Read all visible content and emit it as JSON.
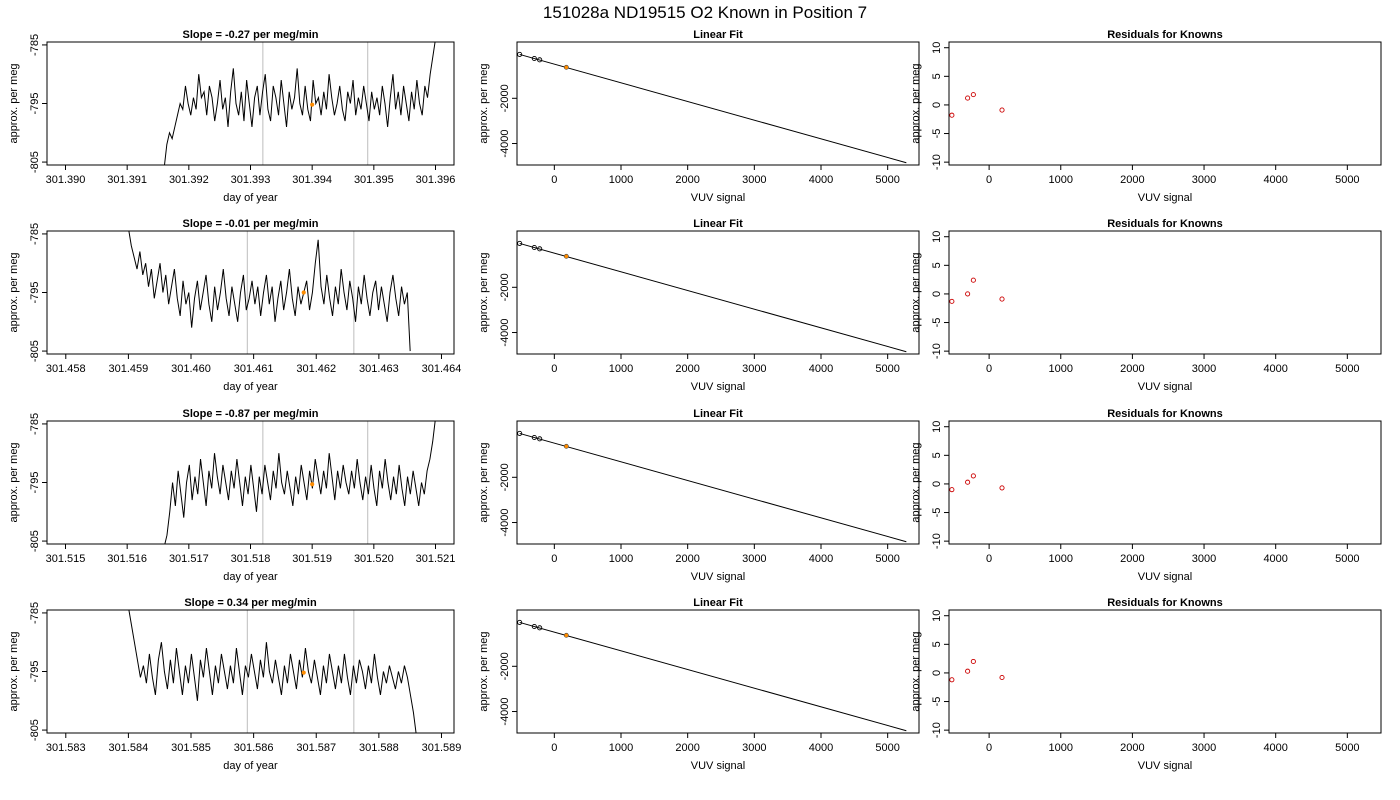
{
  "figure": {
    "title": "151028a     ND19515   O2 Known in Position  7"
  },
  "colors": {
    "frame": "#000000",
    "line": "#000000",
    "grid": "#c8c8c8",
    "marker": "#ff8c00",
    "residual": "#cc0000"
  },
  "chart_data": [
    {
      "type": "line",
      "panel": "trace",
      "row": 1,
      "title": "Slope =  -0.27  per meg/min",
      "xlabel": "day of year",
      "ylabel": "approx. per meg",
      "xlim": [
        301.3897,
        301.3963
      ],
      "ylim": [
        -805.5,
        -784.5
      ],
      "xticks": [
        "301.390",
        "301.391",
        "301.392",
        "301.393",
        "301.394",
        "301.395",
        "301.396"
      ],
      "yticks": [
        "-785",
        "-795",
        "-805"
      ],
      "vlines": [
        301.3932,
        301.3949
      ],
      "marker": {
        "x": 301.394,
        "y": -795.2
      },
      "series": [
        {
          "x_start": 301.3916,
          "x_end": 301.396,
          "values": [
            -806,
            -802,
            -800,
            -801,
            -799,
            -797,
            -795,
            -796,
            -792,
            -795,
            -797,
            -794,
            -796,
            -790,
            -794,
            -793,
            -797,
            -792,
            -794,
            -798,
            -795,
            -791,
            -796,
            -794,
            -799,
            -793,
            -789,
            -795,
            -797,
            -793,
            -798,
            -791,
            -795,
            -799,
            -794,
            -792,
            -797,
            -793,
            -790,
            -796,
            -798,
            -792,
            -794,
            -797,
            -791,
            -795,
            -799,
            -793,
            -796,
            -794,
            -789,
            -795,
            -797,
            -792,
            -796,
            -798,
            -791,
            -795,
            -794,
            -797,
            -793,
            -796,
            -790,
            -794,
            -797,
            -795,
            -792,
            -796,
            -798,
            -793,
            -795,
            -791,
            -797,
            -794,
            -796,
            -792,
            -795,
            -798,
            -793,
            -796,
            -794,
            -797,
            -792,
            -795,
            -799,
            -794,
            -790,
            -796,
            -793,
            -797,
            -792,
            -795,
            -798,
            -793,
            -796,
            -791,
            -795,
            -797,
            -792,
            -794,
            -790,
            -787,
            -784
          ]
        }
      ]
    },
    {
      "type": "line",
      "panel": "fit",
      "row": 1,
      "title": "Linear Fit",
      "xlabel": "VUV signal",
      "ylabel": "approx. per meg",
      "xlim": [
        -560,
        5470
      ],
      "ylim": [
        -4950,
        490
      ],
      "xticks": [
        0,
        1000,
        2000,
        3000,
        4000,
        5000
      ],
      "yticks": [
        -2000,
        -4000
      ],
      "line": {
        "x": [
          -520,
          5280
        ],
        "y": [
          -60,
          -4850
        ]
      },
      "points": {
        "x": [
          -520,
          -300,
          -220
        ],
        "y": [
          -60,
          -240,
          -300
        ]
      },
      "marker": {
        "x": 180,
        "y": -630
      }
    },
    {
      "type": "scatter",
      "panel": "residuals",
      "row": 1,
      "title": "Residuals for Knowns",
      "xlabel": "VUV signal",
      "ylabel": "approx. per meg",
      "xlim": [
        -560,
        5470
      ],
      "ylim": [
        -10.5,
        11
      ],
      "xticks": [
        0,
        1000,
        2000,
        3000,
        4000,
        5000
      ],
      "yticks": [
        10,
        5,
        0,
        -5,
        -10
      ],
      "points": {
        "x": [
          -520,
          -300,
          -220,
          180
        ],
        "y": [
          -1.8,
          1.2,
          1.8,
          -0.9
        ]
      }
    },
    {
      "type": "line",
      "panel": "trace",
      "row": 2,
      "title": "Slope =  -0.01  per meg/min",
      "xlabel": "day of year",
      "ylabel": "approx. per meg",
      "xlim": [
        301.4577,
        301.4642
      ],
      "ylim": [
        -805.5,
        -784.5
      ],
      "xticks": [
        "301.458",
        "301.459",
        "301.460",
        "301.461",
        "301.462",
        "301.463",
        "301.464"
      ],
      "yticks": [
        "-785",
        "-795",
        "-805"
      ],
      "vlines": [
        301.4609,
        301.4626
      ],
      "marker": {
        "x": 301.4618,
        "y": -795.0
      },
      "series": [
        {
          "x_start": 301.459,
          "x_end": 301.4635,
          "values": [
            -784,
            -787,
            -789,
            -791,
            -788,
            -792,
            -790,
            -794,
            -791,
            -796,
            -793,
            -790,
            -795,
            -792,
            -797,
            -794,
            -791,
            -796,
            -799,
            -793,
            -797,
            -795,
            -801,
            -796,
            -793,
            -798,
            -795,
            -792,
            -797,
            -800,
            -794,
            -798,
            -795,
            -791,
            -796,
            -799,
            -794,
            -797,
            -800,
            -795,
            -792,
            -798,
            -796,
            -793,
            -797,
            -794,
            -799,
            -795,
            -792,
            -797,
            -794,
            -800,
            -796,
            -793,
            -798,
            -795,
            -791,
            -796,
            -799,
            -794,
            -797,
            -795,
            -793,
            -798,
            -795,
            -790,
            -786,
            -794,
            -797,
            -792,
            -796,
            -799,
            -794,
            -797,
            -791,
            -795,
            -798,
            -793,
            -796,
            -800,
            -794,
            -797,
            -792,
            -796,
            -799,
            -795,
            -793,
            -798,
            -794,
            -797,
            -800,
            -795,
            -792,
            -796,
            -799,
            -794,
            -797,
            -795,
            -805
          ]
        }
      ]
    },
    {
      "type": "line",
      "panel": "fit",
      "row": 2,
      "title": "Linear Fit",
      "xlabel": "VUV signal",
      "ylabel": "approx. per meg",
      "xlim": [
        -560,
        5470
      ],
      "ylim": [
        -4950,
        490
      ],
      "xticks": [
        0,
        1000,
        2000,
        3000,
        4000,
        5000
      ],
      "yticks": [
        -2000,
        -4000
      ],
      "line": {
        "x": [
          -520,
          5280
        ],
        "y": [
          -60,
          -4850
        ]
      },
      "points": {
        "x": [
          -520,
          -300,
          -220
        ],
        "y": [
          -60,
          -240,
          -300
        ]
      },
      "marker": {
        "x": 180,
        "y": -630
      }
    },
    {
      "type": "scatter",
      "panel": "residuals",
      "row": 2,
      "title": "Residuals for Knowns",
      "xlabel": "VUV signal",
      "ylabel": "approx. per meg",
      "xlim": [
        -560,
        5470
      ],
      "ylim": [
        -10.5,
        11
      ],
      "xticks": [
        0,
        1000,
        2000,
        3000,
        4000,
        5000
      ],
      "yticks": [
        10,
        5,
        0,
        -5,
        -10
      ],
      "points": {
        "x": [
          -520,
          -300,
          -220,
          180
        ],
        "y": [
          -1.3,
          0.0,
          2.4,
          -0.9
        ]
      }
    },
    {
      "type": "line",
      "panel": "trace",
      "row": 3,
      "title": "Slope =  -0.87  per meg/min",
      "xlabel": "day of year",
      "ylabel": "approx. per meg",
      "xlim": [
        301.5147,
        301.5213
      ],
      "ylim": [
        -805.5,
        -784.5
      ],
      "xticks": [
        "301.515",
        "301.516",
        "301.517",
        "301.518",
        "301.519",
        "301.520",
        "301.521"
      ],
      "yticks": [
        "-785",
        "-795",
        "-805"
      ],
      "vlines": [
        301.5182,
        301.5199
      ],
      "marker": {
        "x": 301.519,
        "y": -795.3
      },
      "series": [
        {
          "x_start": 301.5166,
          "x_end": 301.521,
          "values": [
            -806,
            -804,
            -800,
            -795,
            -799,
            -793,
            -797,
            -801,
            -795,
            -792,
            -798,
            -794,
            -797,
            -791,
            -795,
            -799,
            -793,
            -796,
            -790,
            -794,
            -797,
            -792,
            -795,
            -798,
            -793,
            -796,
            -791,
            -795,
            -799,
            -794,
            -797,
            -792,
            -796,
            -800,
            -794,
            -797,
            -792,
            -795,
            -798,
            -793,
            -796,
            -790,
            -795,
            -797,
            -793,
            -796,
            -799,
            -794,
            -797,
            -792,
            -795,
            -798,
            -793,
            -796,
            -791,
            -794,
            -797,
            -793,
            -796,
            -790,
            -794,
            -798,
            -793,
            -796,
            -792,
            -795,
            -797,
            -793,
            -796,
            -791,
            -795,
            -798,
            -794,
            -797,
            -792,
            -796,
            -799,
            -793,
            -796,
            -791,
            -795,
            -798,
            -794,
            -797,
            -792,
            -796,
            -799,
            -794,
            -797,
            -793,
            -796,
            -799,
            -795,
            -797,
            -793,
            -791,
            -788,
            -784
          ]
        }
      ]
    },
    {
      "type": "line",
      "panel": "fit",
      "row": 3,
      "title": "Linear Fit",
      "xlabel": "VUV signal",
      "ylabel": "approx. per meg",
      "xlim": [
        -560,
        5470
      ],
      "ylim": [
        -4950,
        490
      ],
      "xticks": [
        0,
        1000,
        2000,
        3000,
        4000,
        5000
      ],
      "yticks": [
        -2000,
        -4000
      ],
      "line": {
        "x": [
          -520,
          5280
        ],
        "y": [
          -60,
          -4850
        ]
      },
      "points": {
        "x": [
          -520,
          -300,
          -220
        ],
        "y": [
          -60,
          -240,
          -300
        ]
      },
      "marker": {
        "x": 180,
        "y": -630
      }
    },
    {
      "type": "scatter",
      "panel": "residuals",
      "row": 3,
      "title": "Residuals for Knowns",
      "xlabel": "VUV signal",
      "ylabel": "approx. per meg",
      "xlim": [
        -560,
        5470
      ],
      "ylim": [
        -10.5,
        11
      ],
      "xticks": [
        0,
        1000,
        2000,
        3000,
        4000,
        5000
      ],
      "yticks": [
        10,
        5,
        0,
        -5,
        -10
      ],
      "points": {
        "x": [
          -520,
          -300,
          -220,
          180
        ],
        "y": [
          -1.0,
          0.3,
          1.4,
          -0.7
        ]
      }
    },
    {
      "type": "line",
      "panel": "trace",
      "row": 4,
      "title": "Slope =  0.34  per meg/min",
      "xlabel": "day of year",
      "ylabel": "approx. per meg",
      "xlim": [
        301.5827,
        301.5892
      ],
      "ylim": [
        -805.5,
        -784.5
      ],
      "xticks": [
        "301.583",
        "301.584",
        "301.585",
        "301.586",
        "301.587",
        "301.588",
        "301.589"
      ],
      "yticks": [
        "-785",
        "-795",
        "-805"
      ],
      "vlines": [
        301.5859,
        301.5876
      ],
      "marker": {
        "x": 301.5868,
        "y": -795.2
      },
      "series": [
        {
          "x_start": 301.584,
          "x_end": 301.5886,
          "values": [
            -784,
            -787,
            -790,
            -793,
            -796,
            -794,
            -797,
            -792,
            -796,
            -799,
            -793,
            -790,
            -795,
            -798,
            -793,
            -797,
            -791,
            -795,
            -799,
            -794,
            -797,
            -792,
            -796,
            -800,
            -793,
            -796,
            -791,
            -795,
            -799,
            -794,
            -797,
            -792,
            -795,
            -798,
            -794,
            -797,
            -791,
            -795,
            -799,
            -794,
            -796,
            -792,
            -795,
            -798,
            -793,
            -796,
            -790,
            -795,
            -797,
            -793,
            -796,
            -799,
            -794,
            -797,
            -792,
            -795,
            -798,
            -793,
            -796,
            -791,
            -795,
            -797,
            -793,
            -796,
            -799,
            -794,
            -797,
            -792,
            -795,
            -798,
            -794,
            -797,
            -792,
            -796,
            -799,
            -794,
            -797,
            -793,
            -795,
            -798,
            -794,
            -797,
            -792,
            -796,
            -799,
            -795,
            -797,
            -794,
            -796,
            -798,
            -795,
            -797,
            -794,
            -796,
            -799,
            -802,
            -806
          ]
        }
      ]
    },
    {
      "type": "line",
      "panel": "fit",
      "row": 4,
      "title": "Linear Fit",
      "xlabel": "VUV signal",
      "ylabel": "approx. per meg",
      "xlim": [
        -560,
        5470
      ],
      "ylim": [
        -4950,
        490
      ],
      "xticks": [
        0,
        1000,
        2000,
        3000,
        4000,
        5000
      ],
      "yticks": [
        -2000,
        -4000
      ],
      "line": {
        "x": [
          -520,
          5280
        ],
        "y": [
          -60,
          -4850
        ]
      },
      "points": {
        "x": [
          -520,
          -300,
          -220
        ],
        "y": [
          -60,
          -240,
          -300
        ]
      },
      "marker": {
        "x": 180,
        "y": -630
      }
    },
    {
      "type": "scatter",
      "panel": "residuals",
      "row": 4,
      "title": "Residuals for Knowns",
      "xlabel": "VUV signal",
      "ylabel": "approx. per meg",
      "xlim": [
        -560,
        5470
      ],
      "ylim": [
        -10.5,
        11
      ],
      "xticks": [
        0,
        1000,
        2000,
        3000,
        4000,
        5000
      ],
      "yticks": [
        10,
        5,
        0,
        -5,
        -10
      ],
      "points": {
        "x": [
          -520,
          -300,
          -220,
          180
        ],
        "y": [
          -1.2,
          0.3,
          2.0,
          -0.8
        ]
      }
    }
  ]
}
